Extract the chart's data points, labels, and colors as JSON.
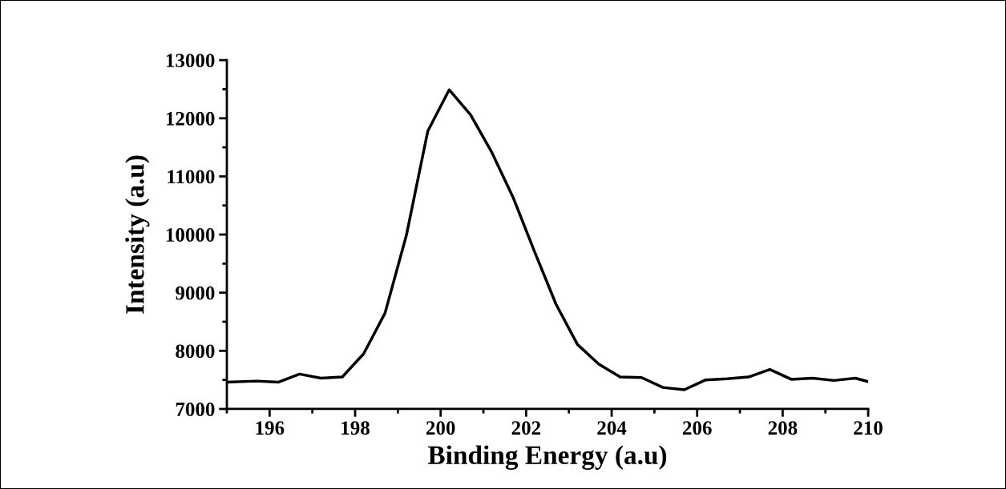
{
  "chart_data": {
    "type": "line",
    "xlabel": "Binding Energy (a.u)",
    "ylabel": "Intensity (a.u)",
    "x": [
      195.0,
      195.7,
      196.2,
      196.7,
      197.2,
      197.7,
      198.2,
      198.7,
      199.2,
      199.7,
      200.2,
      200.7,
      201.2,
      201.7,
      202.2,
      202.7,
      203.2,
      203.7,
      204.2,
      204.7,
      205.2,
      205.7,
      206.2,
      206.7,
      207.2,
      207.7,
      208.2,
      208.7,
      209.2,
      209.7,
      210.0
    ],
    "series": [
      {
        "color": "#000000",
        "values": [
          7460,
          7480,
          7460,
          7600,
          7530,
          7550,
          7950,
          8650,
          9990,
          11780,
          12490,
          12060,
          11410,
          10630,
          9700,
          8800,
          8110,
          7770,
          7550,
          7540,
          7370,
          7330,
          7500,
          7520,
          7550,
          7680,
          7510,
          7530,
          7490,
          7530,
          7470
        ]
      }
    ],
    "xlim": [
      195,
      210
    ],
    "xticks": [
      196,
      198,
      200,
      202,
      204,
      206,
      208,
      210
    ],
    "ylim": [
      7000,
      13000
    ],
    "yticks": [
      7000,
      8000,
      9000,
      10000,
      11000,
      12000,
      13000
    ],
    "grid": false,
    "legend": false,
    "marker": "none",
    "line_style": "solid"
  }
}
